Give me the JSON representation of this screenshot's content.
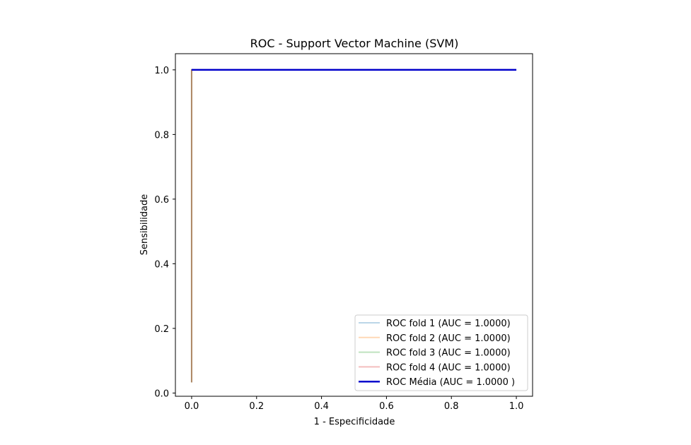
{
  "chart_data": {
    "type": "line",
    "title": "ROC - Support Vector Machine (SVM)",
    "xlabel": "1 - Especificidade",
    "ylabel": "Sensibilidade",
    "xlim": [
      -0.05,
      1.05
    ],
    "ylim": [
      -0.01,
      1.05
    ],
    "xticks": [
      {
        "value": 0.0,
        "label": "0.0"
      },
      {
        "value": 0.2,
        "label": "0.2"
      },
      {
        "value": 0.4,
        "label": "0.4"
      },
      {
        "value": 0.6,
        "label": "0.6"
      },
      {
        "value": 0.8,
        "label": "0.8"
      },
      {
        "value": 1.0,
        "label": "1.0"
      }
    ],
    "yticks": [
      {
        "value": 0.0,
        "label": "0.0"
      },
      {
        "value": 0.2,
        "label": "0.2"
      },
      {
        "value": 0.4,
        "label": "0.4"
      },
      {
        "value": 0.6,
        "label": "0.6"
      },
      {
        "value": 0.8,
        "label": "0.8"
      },
      {
        "value": 1.0,
        "label": "1.0"
      }
    ],
    "grid": false,
    "legend_position": "lower-right",
    "series": [
      {
        "name": "ROC fold 1 (AUC = 1.0000)",
        "color": "#1f77b4",
        "opacity": 0.3,
        "width": 2,
        "x": [
          0,
          0,
          1
        ],
        "y": [
          0.033,
          1,
          1
        ]
      },
      {
        "name": "ROC fold 2 (AUC = 1.0000)",
        "color": "#ff7f0e",
        "opacity": 0.3,
        "width": 2,
        "x": [
          0,
          0,
          1
        ],
        "y": [
          0.033,
          1,
          1
        ]
      },
      {
        "name": "ROC fold 3 (AUC = 1.0000)",
        "color": "#2ca02c",
        "opacity": 0.3,
        "width": 2,
        "x": [
          0,
          0,
          1
        ],
        "y": [
          0.033,
          1,
          1
        ]
      },
      {
        "name": "ROC fold 4 (AUC = 1.0000)",
        "color": "#d62728",
        "opacity": 0.3,
        "width": 2,
        "x": [
          0,
          0,
          1
        ],
        "y": [
          0.033,
          1,
          1
        ]
      },
      {
        "name": "ROC Média (AUC = 1.0000 )",
        "color": "#0000cc",
        "opacity": 1.0,
        "width": 2.5,
        "x": [
          0,
          1
        ],
        "y": [
          1,
          1
        ]
      }
    ]
  }
}
